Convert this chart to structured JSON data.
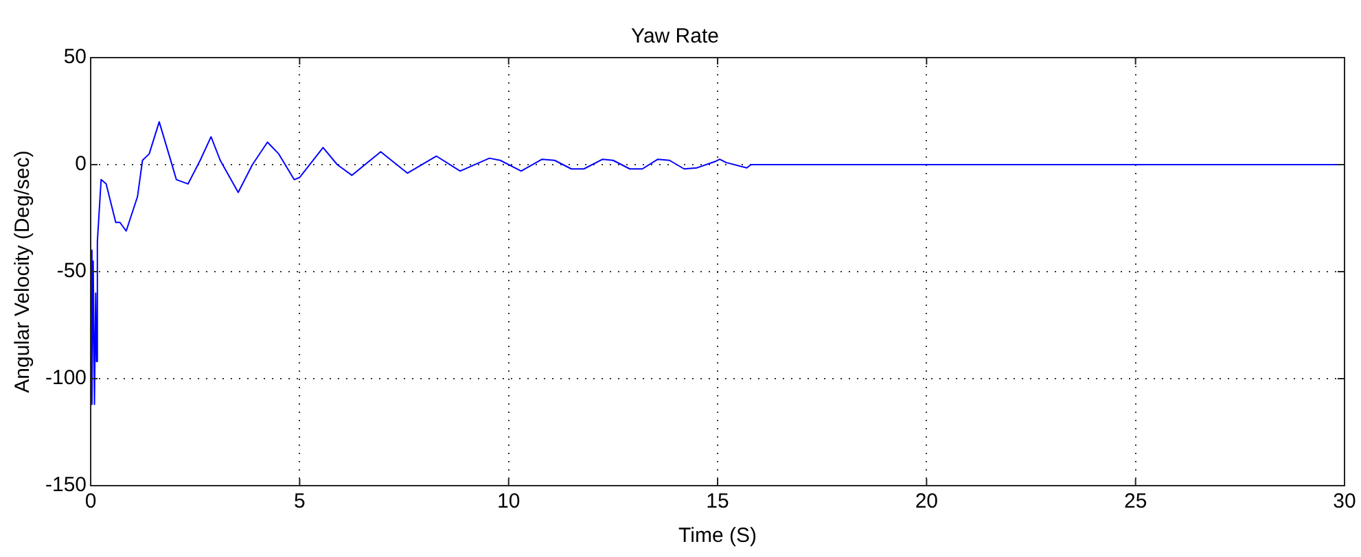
{
  "chart_data": {
    "type": "line",
    "title": "Yaw Rate",
    "xlabel": "Time (S)",
    "ylabel": "Angular Velocity (Deg/sec)",
    "xlim": [
      0,
      30
    ],
    "xticks": [
      0,
      5,
      10,
      15,
      20,
      25,
      30
    ],
    "ylim": [
      -150,
      50
    ],
    "yticks": [
      -150,
      -100,
      -50,
      0,
      50
    ],
    "grid": true,
    "legend": false,
    "marker": "none",
    "line_style": "solid",
    "series": [
      {
        "color": "#0000ff",
        "x": [
          0,
          0.03,
          0.06,
          0.09,
          0.12,
          0.14,
          0.16,
          0.25,
          0.37,
          0.6,
          0.7,
          0.85,
          1.12,
          1.24,
          1.4,
          1.64,
          1.93,
          2.05,
          2.33,
          2.62,
          2.88,
          3.1,
          3.53,
          3.87,
          4.23,
          4.5,
          4.87,
          5,
          5.56,
          5.9,
          6.25,
          6.94,
          7.58,
          8.27,
          8.84,
          9.54,
          9.8,
          10.3,
          10.8,
          11.1,
          11.5,
          11.8,
          12.25,
          12.5,
          12.9,
          13.2,
          13.57,
          13.85,
          14.2,
          14.5,
          14.95,
          15.05,
          15.2,
          15.7,
          15.8,
          30
        ],
        "values": [
          -40,
          -112,
          -45,
          -112,
          -60,
          -92,
          -36,
          -7,
          -9,
          -27,
          -27,
          -31,
          -15,
          2,
          5,
          20,
          1,
          -7,
          -9,
          2,
          13,
          2,
          -13,
          0,
          10.5,
          5,
          -7,
          -6,
          8,
          0,
          -5,
          6,
          -4,
          4,
          -3,
          3,
          2,
          -3,
          2.5,
          2,
          -2,
          -2,
          2.5,
          2,
          -2,
          -2,
          2.5,
          2,
          -2,
          -1.5,
          1.5,
          2.5,
          1,
          -1.5,
          0,
          0
        ]
      }
    ]
  }
}
